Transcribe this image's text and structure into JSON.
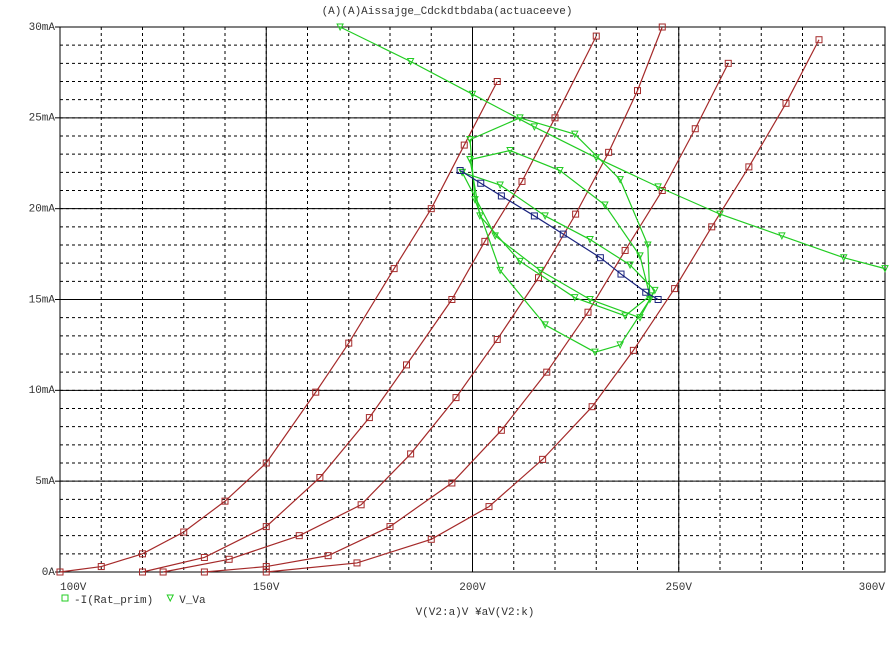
{
  "chart_data": {
    "type": "line",
    "title": "(A)(A)Aissajge_Cdckdtbdaba(actuaceeve)",
    "x_label": "V(V2:a)V ¥aV(V2:k)",
    "xlim": [
      100,
      300
    ],
    "ylim": [
      0,
      30
    ],
    "xticks": [
      {
        "value": 100,
        "label": "100V"
      },
      {
        "value": 150,
        "label": "150V"
      },
      {
        "value": 200,
        "label": "200V"
      },
      {
        "value": 250,
        "label": "250V"
      },
      {
        "value": 300,
        "label": "300V"
      }
    ],
    "yticks": [
      {
        "value": 0,
        "label": "0A"
      },
      {
        "value": 5,
        "label": "5mA"
      },
      {
        "value": 10,
        "label": "10mA"
      },
      {
        "value": 15,
        "label": "15mA"
      },
      {
        "value": 20,
        "label": "20mA"
      },
      {
        "value": 25,
        "label": "25mA"
      },
      {
        "value": 30,
        "label": "30mA"
      }
    ],
    "grid": true,
    "minor_grid_step": {
      "x": 10,
      "y": 1
    },
    "legend": [
      {
        "label": "-I(Rat_prim)",
        "color": "#22cc22",
        "marker": "square"
      },
      {
        "label": "V_Va",
        "color": "#22cc22",
        "marker": "triangle"
      }
    ],
    "series": [
      {
        "color": "#a52a2a",
        "marker": "square",
        "x": [
          100,
          110,
          120,
          130,
          140,
          150,
          162,
          170,
          181,
          190,
          198,
          206
        ],
        "values": [
          0,
          0.3,
          1,
          2.2,
          3.9,
          6,
          9.9,
          12.6,
          16.7,
          20,
          23.5,
          27
        ]
      },
      {
        "color": "#a52a2a",
        "marker": "square",
        "x": [
          120,
          135,
          150,
          163,
          175,
          184,
          195,
          203,
          212,
          220,
          230
        ],
        "values": [
          0,
          0.8,
          2.5,
          5.2,
          8.5,
          11.4,
          15,
          18.2,
          21.5,
          25,
          29.5
        ]
      },
      {
        "color": "#a52a2a",
        "marker": "square",
        "x": [
          125,
          141,
          158,
          173,
          185,
          196,
          206,
          216,
          225,
          233,
          240,
          246
        ],
        "values": [
          0,
          0.7,
          2,
          3.7,
          6.5,
          9.6,
          12.8,
          16.2,
          19.7,
          23.1,
          26.5,
          30
        ]
      },
      {
        "color": "#a52a2a",
        "marker": "square",
        "x": [
          135,
          150,
          165,
          180,
          195,
          207,
          218,
          228,
          237,
          246,
          254,
          262
        ],
        "values": [
          0,
          0.3,
          0.9,
          2.5,
          4.9,
          7.8,
          11,
          14.3,
          17.7,
          21,
          24.4,
          28
        ]
      },
      {
        "color": "#a52a2a",
        "marker": "square",
        "x": [
          150,
          172,
          190,
          204,
          217,
          229,
          239,
          249,
          258,
          267,
          276,
          284
        ],
        "values": [
          0,
          0.5,
          1.8,
          3.6,
          6.2,
          9.1,
          12.2,
          15.6,
          19,
          22.3,
          25.8,
          29.3
        ]
      },
      {
        "color": "#22cc22",
        "marker": "triangle",
        "x": [
          167.9,
          185,
          200,
          215,
          230,
          245,
          260,
          275,
          290,
          300
        ],
        "values": [
          30,
          28.1,
          26.3,
          24.5,
          22.8,
          21.2,
          19.7,
          18.5,
          17.3,
          16.7
        ]
      },
      {
        "color": "#22cc22",
        "marker": "triangle",
        "x": [
          199.4,
          211.5,
          224.8,
          235.8,
          242.5,
          243,
          235.8,
          229.7,
          217.6,
          206.7,
          200.6,
          199.4
        ],
        "values": [
          23.8,
          25,
          24.1,
          21.6,
          18,
          15,
          12.5,
          12.1,
          13.6,
          16.6,
          20.5,
          23.8
        ]
      },
      {
        "color": "#22cc22",
        "marker": "triangle",
        "x": [
          199.4,
          209.1,
          221.2,
          232.1,
          240.6,
          243,
          237,
          224.8,
          211.5,
          201.8,
          199.4
        ],
        "values": [
          22.7,
          23.2,
          22.1,
          20.2,
          17.4,
          15.2,
          14.1,
          15.1,
          17.1,
          19.6,
          22.7
        ]
      },
      {
        "color": "#22cc22",
        "marker": "triangle",
        "x": [
          197.5,
          206.7,
          217.6,
          228.5,
          238.2,
          244.2,
          240.6,
          228.5,
          216.4,
          205.5,
          197.5
        ],
        "values": [
          22,
          21.3,
          19.6,
          18.3,
          16.9,
          15.5,
          14,
          15,
          16.6,
          18.5,
          22
        ]
      },
      {
        "color": "#1a237e",
        "marker": "square",
        "x": [
          197,
          202,
          207,
          215,
          222,
          231,
          236,
          242,
          245
        ],
        "values": [
          22.1,
          21.4,
          20.7,
          19.6,
          18.6,
          17.3,
          16.4,
          15.4,
          15
        ]
      }
    ]
  }
}
